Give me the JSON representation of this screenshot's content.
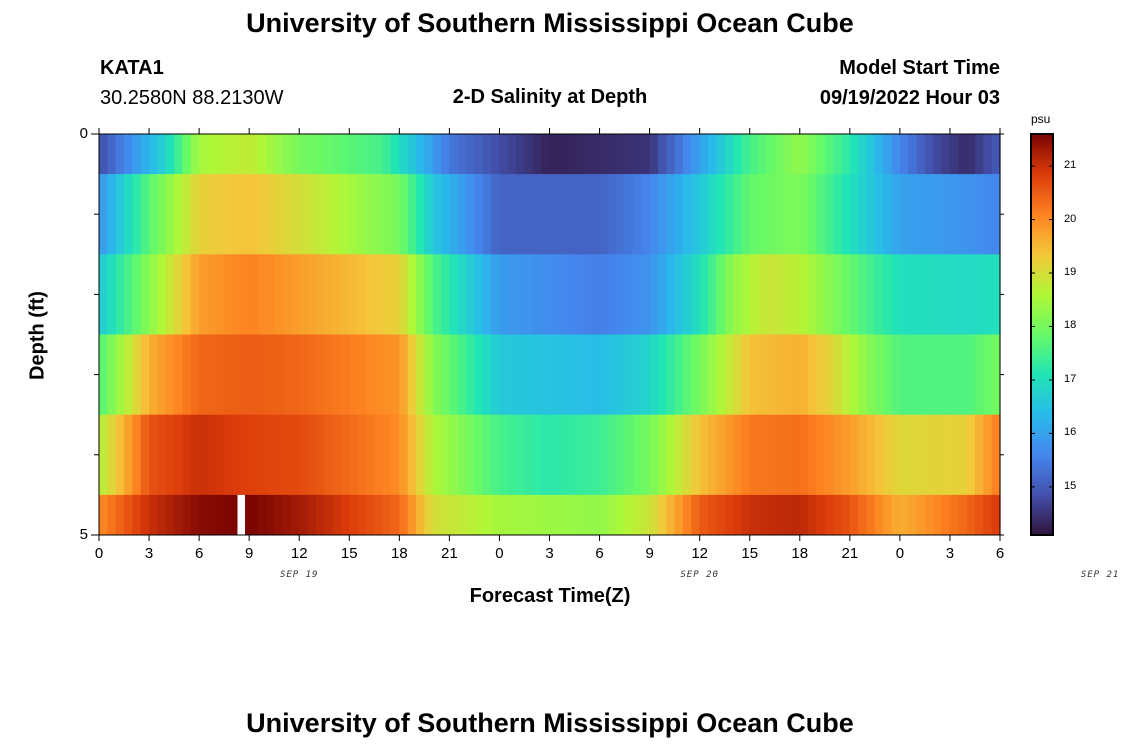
{
  "header": {
    "title": "University of Southern Mississippi Ocean Cube",
    "station": "KATA1",
    "coords": "30.2580N  88.2130W",
    "subtitle": "2-D Salinity at Depth",
    "model_start_label": "Model Start Time",
    "model_start_value": "09/19/2022 Hour 03"
  },
  "footer": {
    "title": "University of Southern Mississippi Ocean Cube"
  },
  "chart_data": {
    "type": "heatmap",
    "title": "2-D Salinity at Depth",
    "xlabel": "Forecast Time(Z)",
    "ylabel": "Depth (ft)",
    "ylim": [
      0,
      5
    ],
    "y_tick_labels": [
      "0",
      "5"
    ],
    "x_tick_labels": [
      "0",
      "3",
      "6",
      "9",
      "12",
      "15",
      "18",
      "21",
      "0",
      "3",
      "6",
      "9",
      "12",
      "15",
      "18",
      "21",
      "0",
      "3",
      "6"
    ],
    "date_labels": [
      {
        "text": "SEP 19",
        "hour": 12
      },
      {
        "text": "SEP 20",
        "hour": 36
      },
      {
        "text": "SEP 21",
        "hour": 60
      }
    ],
    "hours_range": [
      0,
      54
    ],
    "colorbar": {
      "unit": "psu",
      "range": [
        14.1,
        21.6
      ],
      "ticks": [
        15,
        16,
        17,
        18,
        19,
        20,
        21
      ],
      "tick_labels": [
        "15",
        "16",
        "17",
        "18",
        "19",
        "20",
        "21"
      ]
    },
    "layers": [
      {
        "depth_range": [
          0,
          0.5
        ],
        "keypoints": [
          [
            0,
            14.8
          ],
          [
            4,
            16.8
          ],
          [
            6,
            18.5
          ],
          [
            9,
            18.8
          ],
          [
            12,
            18.0
          ],
          [
            17,
            17.5
          ],
          [
            21,
            15.4
          ],
          [
            24,
            14.8
          ],
          [
            27,
            14.3
          ],
          [
            33,
            14.5
          ],
          [
            36,
            16.0
          ],
          [
            39,
            17.5
          ],
          [
            42,
            18.3
          ],
          [
            45,
            17.2
          ],
          [
            48,
            15.6
          ],
          [
            50,
            14.8
          ],
          [
            52,
            14.4
          ],
          [
            54,
            15.0
          ]
        ]
      },
      {
        "depth_range": [
          0.5,
          1.5
        ],
        "keypoints": [
          [
            0,
            15.8
          ],
          [
            3,
            17.7
          ],
          [
            6,
            19.2
          ],
          [
            9,
            19.4
          ],
          [
            12,
            19.0
          ],
          [
            18,
            18.0
          ],
          [
            20,
            16.6
          ],
          [
            24,
            15.1
          ],
          [
            30,
            15.1
          ],
          [
            33,
            15.6
          ],
          [
            36,
            16.6
          ],
          [
            39,
            17.8
          ],
          [
            42,
            18.1
          ],
          [
            45,
            17.0
          ],
          [
            48,
            16.0
          ],
          [
            52,
            15.8
          ],
          [
            54,
            15.6
          ]
        ]
      },
      {
        "depth_range": [
          1.5,
          2.5
        ],
        "keypoints": [
          [
            0,
            16.6
          ],
          [
            3,
            18.2
          ],
          [
            6,
            19.8
          ],
          [
            9,
            20.1
          ],
          [
            12,
            19.8
          ],
          [
            18,
            19.2
          ],
          [
            20,
            17.6
          ],
          [
            24,
            15.9
          ],
          [
            30,
            15.5
          ],
          [
            33,
            15.8
          ],
          [
            36,
            17.0
          ],
          [
            38,
            18.3
          ],
          [
            40,
            18.9
          ],
          [
            42,
            18.7
          ],
          [
            45,
            17.8
          ],
          [
            48,
            17.0
          ],
          [
            52,
            16.9
          ],
          [
            54,
            17.0
          ]
        ]
      },
      {
        "depth_range": [
          2.5,
          3.5
        ],
        "keypoints": [
          [
            0,
            17.6
          ],
          [
            3,
            19.6
          ],
          [
            6,
            20.4
          ],
          [
            9,
            20.5
          ],
          [
            12,
            20.4
          ],
          [
            18,
            19.9
          ],
          [
            20,
            18.2
          ],
          [
            24,
            16.6
          ],
          [
            30,
            16.4
          ],
          [
            33,
            16.8
          ],
          [
            36,
            18.0
          ],
          [
            39,
            19.4
          ],
          [
            42,
            19.6
          ],
          [
            44,
            19.1
          ],
          [
            46,
            18.2
          ],
          [
            48,
            17.6
          ],
          [
            52,
            17.6
          ],
          [
            54,
            18.0
          ]
        ]
      },
      {
        "depth_range": [
          3.5,
          4.5
        ],
        "keypoints": [
          [
            0,
            18.6
          ],
          [
            3,
            20.6
          ],
          [
            6,
            21.0
          ],
          [
            9,
            20.8
          ],
          [
            12,
            20.7
          ],
          [
            18,
            20.0
          ],
          [
            20,
            18.6
          ],
          [
            24,
            17.5
          ],
          [
            27,
            17.2
          ],
          [
            30,
            17.4
          ],
          [
            33,
            18.0
          ],
          [
            36,
            19.4
          ],
          [
            39,
            20.2
          ],
          [
            42,
            20.3
          ],
          [
            45,
            19.8
          ],
          [
            48,
            19.1
          ],
          [
            52,
            19.2
          ],
          [
            54,
            20.2
          ]
        ]
      },
      {
        "depth_range": [
          4.5,
          5.0
        ],
        "keypoints": [
          [
            0,
            20.0
          ],
          [
            3,
            21.0
          ],
          [
            6,
            21.5
          ],
          [
            9,
            21.6
          ],
          [
            12,
            21.3
          ],
          [
            18,
            20.4
          ],
          [
            20,
            19.0
          ],
          [
            24,
            18.5
          ],
          [
            30,
            18.3
          ],
          [
            33,
            18.9
          ],
          [
            36,
            20.5
          ],
          [
            39,
            21.0
          ],
          [
            42,
            21.1
          ],
          [
            45,
            20.6
          ],
          [
            48,
            19.6
          ],
          [
            52,
            20.4
          ],
          [
            54,
            20.9
          ]
        ]
      }
    ],
    "missing_segment": {
      "hour_range": [
        8.3,
        8.75
      ],
      "depth_range": [
        4.5,
        5.0
      ]
    }
  }
}
